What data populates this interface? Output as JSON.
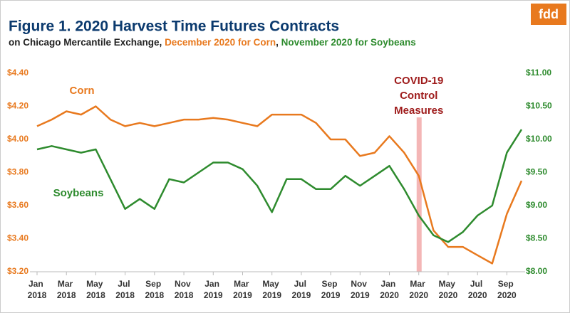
{
  "chart_data": {
    "type": "line",
    "title": "Figure 1. 2020 Harvest Time Futures Contracts",
    "subtitle": [
      "on Chicago Mercantile Exchange, ",
      "December 2020 for Corn",
      ", ",
      "November 2020 for Soybeans"
    ],
    "logo": "fdd",
    "x": [
      "2018-01",
      "2018-02",
      "2018-03",
      "2018-04",
      "2018-05",
      "2018-06",
      "2018-07",
      "2018-08",
      "2018-09",
      "2018-10",
      "2018-11",
      "2018-12",
      "2019-01",
      "2019-02",
      "2019-03",
      "2019-04",
      "2019-05",
      "2019-06",
      "2019-07",
      "2019-08",
      "2019-09",
      "2019-10",
      "2019-11",
      "2019-12",
      "2020-01",
      "2020-02",
      "2020-03",
      "2020-04",
      "2020-05",
      "2020-06",
      "2020-07",
      "2020-08",
      "2020-09",
      "2020-10"
    ],
    "xlim": [
      "2018-01",
      "2020-10"
    ],
    "xticks": [
      {
        "value": "2018-01",
        "label": "Jan 2018"
      },
      {
        "value": "2018-03",
        "label": "Mar 2018"
      },
      {
        "value": "2018-05",
        "label": "May 2018"
      },
      {
        "value": "2018-07",
        "label": "Jul 2018"
      },
      {
        "value": "2018-09",
        "label": "Sep 2018"
      },
      {
        "value": "2018-11",
        "label": "Nov 2018"
      },
      {
        "value": "2019-01",
        "label": "Jan 2019"
      },
      {
        "value": "2019-03",
        "label": "Mar 2019"
      },
      {
        "value": "2019-05",
        "label": "May 2019"
      },
      {
        "value": "2019-07",
        "label": "Jul 2019"
      },
      {
        "value": "2019-09",
        "label": "Sep 2019"
      },
      {
        "value": "2019-11",
        "label": "Nov 2019"
      },
      {
        "value": "2020-01",
        "label": "Jan 2020"
      },
      {
        "value": "2020-03",
        "label": "Mar 2020"
      },
      {
        "value": "2020-05",
        "label": "May 2020"
      },
      {
        "value": "2020-07",
        "label": "Jul 2020"
      },
      {
        "value": "2020-09",
        "label": "Sep 2020"
      }
    ],
    "series": [
      {
        "name": "Corn",
        "color": "#e8791e",
        "values": [
          4.08,
          4.12,
          4.17,
          4.15,
          4.2,
          4.12,
          4.08,
          4.1,
          4.08,
          4.1,
          4.12,
          4.12,
          4.13,
          4.12,
          4.1,
          4.08,
          4.15,
          4.15,
          4.15,
          4.1,
          4.0,
          4.0,
          3.9,
          3.92,
          4.02,
          3.92,
          3.78,
          3.45,
          3.35,
          3.35,
          3.3,
          3.25,
          3.55,
          3.75
        ]
      },
      {
        "name": "Soybeans",
        "color": "#2e8b2e",
        "axis": "y2",
        "values": [
          9.85,
          9.9,
          9.85,
          9.8,
          9.85,
          9.4,
          8.95,
          9.1,
          8.95,
          9.4,
          9.35,
          9.5,
          9.65,
          9.65,
          9.55,
          9.3,
          8.9,
          9.4,
          9.4,
          9.25,
          9.25,
          9.45,
          9.3,
          9.45,
          9.6,
          9.25,
          8.85,
          8.55,
          8.45,
          8.6,
          8.85,
          9.0,
          9.8,
          10.15
        ]
      }
    ],
    "ylim": [
      3.2,
      4.4
    ],
    "yticks": [
      {
        "value": 3.2,
        "label": "$3.20"
      },
      {
        "value": 3.4,
        "label": "$3.40"
      },
      {
        "value": 3.6,
        "label": "$3.60"
      },
      {
        "value": 3.8,
        "label": "$3.80"
      },
      {
        "value": 4.0,
        "label": "$4.00"
      },
      {
        "value": 4.2,
        "label": "$4.20"
      },
      {
        "value": 4.4,
        "label": "$4.40"
      }
    ],
    "y2lim": [
      8.0,
      11.0
    ],
    "y2ticks": [
      {
        "value": 8.0,
        "label": "$8.00"
      },
      {
        "value": 8.5,
        "label": "$8.50"
      },
      {
        "value": 9.0,
        "label": "$9.00"
      },
      {
        "value": 9.5,
        "label": "$9.50"
      },
      {
        "value": 10.0,
        "label": "$10.00"
      },
      {
        "value": 10.5,
        "label": "$10.50"
      },
      {
        "value": 11.0,
        "label": "$11.00"
      }
    ],
    "highlight": {
      "x": "2020-03",
      "color": "#f4b6b6",
      "label": [
        "COVID-19",
        "Control",
        "Measures"
      ],
      "label_color": "#9e1b1b"
    },
    "grid": false
  }
}
